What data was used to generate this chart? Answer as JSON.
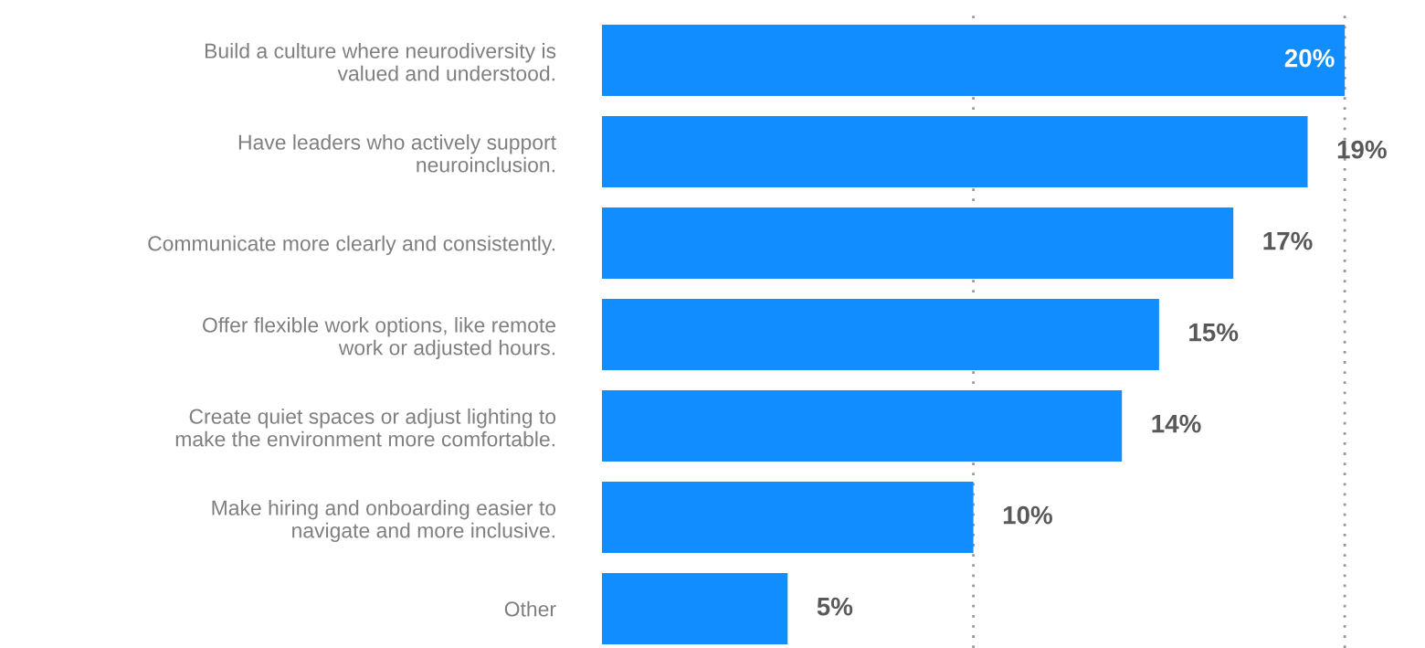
{
  "chart_data": {
    "type": "bar",
    "orientation": "horizontal",
    "categories": [
      "Build a culture where neurodiversity is\nvalued and understood.",
      "Have leaders who actively support\nneuroinclusion.",
      "Communicate more clearly and consistently.",
      "Offer flexible work options, like remote\nwork or adjusted hours.",
      "Create quiet spaces or adjust lighting to\nmake the environment more comfortable.",
      "Make hiring and onboarding easier to\nnavigate and more inclusive.",
      "Other"
    ],
    "values": [
      20,
      19,
      17,
      15,
      14,
      10,
      5
    ],
    "value_labels": [
      "20%",
      "19%",
      "17%",
      "15%",
      "14%",
      "10%",
      "5%"
    ],
    "color": "#118dff",
    "ref_lines": [
      {
        "axis": "x",
        "value": 10,
        "color": "#999999",
        "line_style": "dotted"
      },
      {
        "axis": "x",
        "value": 20,
        "color": "#999999",
        "line_style": "dotted"
      }
    ],
    "tick_labels": "y"
  }
}
